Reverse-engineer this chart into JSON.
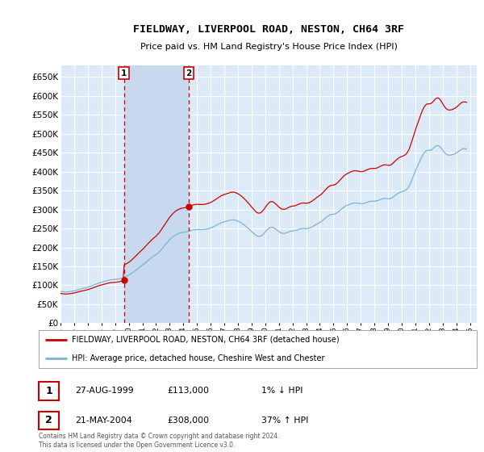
{
  "title": "FIELDWAY, LIVERPOOL ROAD, NESTON, CH64 3RF",
  "subtitle": "Price paid vs. HM Land Registry's House Price Index (HPI)",
  "ylim": [
    0,
    680000
  ],
  "yticks": [
    0,
    50000,
    100000,
    150000,
    200000,
    250000,
    300000,
    350000,
    400000,
    450000,
    500000,
    550000,
    600000,
    650000
  ],
  "xlim_start": 1995.0,
  "xlim_end": 2025.5,
  "bg_color": "#dce9f7",
  "plot_bg_color": "#dce9f7",
  "shade_color": "#c8d8ee",
  "grid_color": "#ffffff",
  "hpi_color": "#7ab4d8",
  "price_color": "#cc0000",
  "sale1_date": 1999.65,
  "sale1_price": 113000,
  "sale2_date": 2004.39,
  "sale2_price": 308000,
  "legend_label1": "FIELDWAY, LIVERPOOL ROAD, NESTON, CH64 3RF (detached house)",
  "legend_label2": "HPI: Average price, detached house, Cheshire West and Chester",
  "table_row1": [
    "1",
    "27-AUG-1999",
    "£113,000",
    "1% ↓ HPI"
  ],
  "table_row2": [
    "2",
    "21-MAY-2004",
    "£308,000",
    "37% ↑ HPI"
  ],
  "footer": "Contains HM Land Registry data © Crown copyright and database right 2024.\nThis data is licensed under the Open Government Licence v3.0.",
  "hpi_monthly": [
    [
      1995.0,
      84000
    ],
    [
      1995.083,
      83600
    ],
    [
      1995.167,
      83100
    ],
    [
      1995.25,
      82700
    ],
    [
      1995.333,
      82500
    ],
    [
      1995.417,
      82400
    ],
    [
      1995.5,
      82600
    ],
    [
      1995.583,
      82900
    ],
    [
      1995.667,
      83300
    ],
    [
      1995.75,
      83800
    ],
    [
      1995.833,
      84200
    ],
    [
      1995.917,
      84700
    ],
    [
      1996.0,
      85300
    ],
    [
      1996.083,
      86100
    ],
    [
      1996.167,
      87000
    ],
    [
      1996.25,
      87900
    ],
    [
      1996.333,
      88800
    ],
    [
      1996.417,
      89600
    ],
    [
      1996.5,
      90400
    ],
    [
      1996.583,
      91100
    ],
    [
      1996.667,
      91800
    ],
    [
      1996.75,
      92500
    ],
    [
      1996.833,
      93200
    ],
    [
      1996.917,
      93900
    ],
    [
      1997.0,
      94700
    ],
    [
      1997.083,
      95700
    ],
    [
      1997.167,
      96800
    ],
    [
      1997.25,
      98000
    ],
    [
      1997.333,
      99200
    ],
    [
      1997.417,
      100500
    ],
    [
      1997.5,
      101800
    ],
    [
      1997.583,
      103000
    ],
    [
      1997.667,
      104200
    ],
    [
      1997.75,
      105300
    ],
    [
      1997.833,
      106300
    ],
    [
      1997.917,
      107200
    ],
    [
      1998.0,
      108000
    ],
    [
      1998.083,
      108900
    ],
    [
      1998.167,
      109800
    ],
    [
      1998.25,
      110800
    ],
    [
      1998.333,
      111700
    ],
    [
      1998.417,
      112500
    ],
    [
      1998.5,
      113200
    ],
    [
      1998.583,
      113800
    ],
    [
      1998.667,
      114300
    ],
    [
      1998.75,
      114700
    ],
    [
      1998.833,
      115000
    ],
    [
      1998.917,
      115200
    ],
    [
      1999.0,
      115400
    ],
    [
      1999.083,
      115700
    ],
    [
      1999.167,
      116100
    ],
    [
      1999.25,
      116700
    ],
    [
      1999.333,
      117400
    ],
    [
      1999.417,
      118200
    ],
    [
      1999.5,
      119100
    ],
    [
      1999.583,
      120100
    ],
    [
      1999.667,
      121200
    ],
    [
      1999.75,
      122400
    ],
    [
      1999.833,
      123700
    ],
    [
      1999.917,
      125100
    ],
    [
      2000.0,
      126600
    ],
    [
      2000.083,
      128400
    ],
    [
      2000.167,
      130300
    ],
    [
      2000.25,
      132400
    ],
    [
      2000.333,
      134600
    ],
    [
      2000.417,
      136900
    ],
    [
      2000.5,
      139300
    ],
    [
      2000.583,
      141700
    ],
    [
      2000.667,
      144100
    ],
    [
      2000.75,
      146400
    ],
    [
      2000.833,
      148700
    ],
    [
      2000.917,
      150900
    ],
    [
      2001.0,
      153000
    ],
    [
      2001.083,
      155400
    ],
    [
      2001.167,
      157900
    ],
    [
      2001.25,
      160500
    ],
    [
      2001.333,
      163100
    ],
    [
      2001.417,
      165700
    ],
    [
      2001.5,
      168200
    ],
    [
      2001.583,
      170600
    ],
    [
      2001.667,
      172900
    ],
    [
      2001.75,
      175100
    ],
    [
      2001.833,
      177200
    ],
    [
      2001.917,
      179200
    ],
    [
      2002.0,
      181100
    ],
    [
      2002.083,
      183500
    ],
    [
      2002.167,
      186100
    ],
    [
      2002.25,
      189000
    ],
    [
      2002.333,
      192200
    ],
    [
      2002.417,
      195600
    ],
    [
      2002.5,
      199200
    ],
    [
      2002.583,
      202900
    ],
    [
      2002.667,
      206600
    ],
    [
      2002.75,
      210300
    ],
    [
      2002.833,
      213800
    ],
    [
      2002.917,
      217200
    ],
    [
      2003.0,
      220300
    ],
    [
      2003.083,
      223200
    ],
    [
      2003.167,
      225900
    ],
    [
      2003.25,
      228400
    ],
    [
      2003.333,
      230700
    ],
    [
      2003.417,
      232700
    ],
    [
      2003.5,
      234400
    ],
    [
      2003.583,
      235800
    ],
    [
      2003.667,
      237000
    ],
    [
      2003.75,
      238000
    ],
    [
      2003.833,
      238700
    ],
    [
      2003.917,
      239200
    ],
    [
      2004.0,
      239600
    ],
    [
      2004.083,
      240100
    ],
    [
      2004.167,
      240700
    ],
    [
      2004.25,
      241400
    ],
    [
      2004.333,
      242200
    ],
    [
      2004.417,
      243100
    ],
    [
      2004.5,
      244000
    ],
    [
      2004.583,
      244900
    ],
    [
      2004.667,
      245700
    ],
    [
      2004.75,
      246300
    ],
    [
      2004.833,
      246800
    ],
    [
      2004.917,
      247100
    ],
    [
      2005.0,
      247200
    ],
    [
      2005.083,
      247200
    ],
    [
      2005.167,
      247100
    ],
    [
      2005.25,
      247000
    ],
    [
      2005.333,
      246900
    ],
    [
      2005.417,
      247000
    ],
    [
      2005.5,
      247200
    ],
    [
      2005.583,
      247500
    ],
    [
      2005.667,
      248000
    ],
    [
      2005.75,
      248600
    ],
    [
      2005.833,
      249300
    ],
    [
      2005.917,
      250100
    ],
    [
      2006.0,
      251100
    ],
    [
      2006.083,
      252300
    ],
    [
      2006.167,
      253700
    ],
    [
      2006.25,
      255200
    ],
    [
      2006.333,
      256800
    ],
    [
      2006.417,
      258500
    ],
    [
      2006.5,
      260200
    ],
    [
      2006.583,
      261800
    ],
    [
      2006.667,
      263300
    ],
    [
      2006.75,
      264700
    ],
    [
      2006.833,
      265900
    ],
    [
      2006.917,
      266900
    ],
    [
      2007.0,
      267700
    ],
    [
      2007.083,
      268500
    ],
    [
      2007.167,
      269300
    ],
    [
      2007.25,
      270200
    ],
    [
      2007.333,
      271100
    ],
    [
      2007.417,
      271900
    ],
    [
      2007.5,
      272400
    ],
    [
      2007.583,
      272700
    ],
    [
      2007.667,
      272700
    ],
    [
      2007.75,
      272300
    ],
    [
      2007.833,
      271600
    ],
    [
      2007.917,
      270600
    ],
    [
      2008.0,
      269400
    ],
    [
      2008.083,
      268000
    ],
    [
      2008.167,
      266400
    ],
    [
      2008.25,
      264600
    ],
    [
      2008.333,
      262500
    ],
    [
      2008.417,
      260300
    ],
    [
      2008.5,
      258000
    ],
    [
      2008.583,
      255600
    ],
    [
      2008.667,
      253100
    ],
    [
      2008.75,
      250500
    ],
    [
      2008.833,
      247800
    ],
    [
      2008.917,
      245000
    ],
    [
      2009.0,
      242100
    ],
    [
      2009.083,
      239200
    ],
    [
      2009.167,
      236400
    ],
    [
      2009.25,
      233800
    ],
    [
      2009.333,
      231600
    ],
    [
      2009.417,
      229900
    ],
    [
      2009.5,
      229000
    ],
    [
      2009.583,
      229000
    ],
    [
      2009.667,
      229900
    ],
    [
      2009.75,
      231700
    ],
    [
      2009.833,
      234200
    ],
    [
      2009.917,
      237300
    ],
    [
      2010.0,
      240700
    ],
    [
      2010.083,
      244100
    ],
    [
      2010.167,
      247200
    ],
    [
      2010.25,
      249800
    ],
    [
      2010.333,
      251800
    ],
    [
      2010.417,
      252900
    ],
    [
      2010.5,
      253000
    ],
    [
      2010.583,
      252200
    ],
    [
      2010.667,
      250700
    ],
    [
      2010.75,
      248700
    ],
    [
      2010.833,
      246400
    ],
    [
      2010.917,
      244100
    ],
    [
      2011.0,
      241800
    ],
    [
      2011.083,
      239900
    ],
    [
      2011.167,
      238400
    ],
    [
      2011.25,
      237400
    ],
    [
      2011.333,
      236900
    ],
    [
      2011.417,
      237000
    ],
    [
      2011.5,
      237700
    ],
    [
      2011.583,
      238800
    ],
    [
      2011.667,
      240100
    ],
    [
      2011.75,
      241400
    ],
    [
      2011.833,
      242500
    ],
    [
      2011.917,
      243200
    ],
    [
      2012.0,
      243500
    ],
    [
      2012.083,
      243700
    ],
    [
      2012.167,
      244200
    ],
    [
      2012.25,
      245000
    ],
    [
      2012.333,
      246000
    ],
    [
      2012.417,
      247100
    ],
    [
      2012.5,
      248200
    ],
    [
      2012.583,
      249100
    ],
    [
      2012.667,
      249700
    ],
    [
      2012.75,
      250000
    ],
    [
      2012.833,
      250000
    ],
    [
      2012.917,
      249800
    ],
    [
      2013.0,
      249600
    ],
    [
      2013.083,
      249700
    ],
    [
      2013.167,
      250200
    ],
    [
      2013.25,
      251100
    ],
    [
      2013.333,
      252300
    ],
    [
      2013.417,
      253800
    ],
    [
      2013.5,
      255500
    ],
    [
      2013.583,
      257300
    ],
    [
      2013.667,
      259200
    ],
    [
      2013.75,
      261000
    ],
    [
      2013.833,
      262700
    ],
    [
      2013.917,
      264300
    ],
    [
      2014.0,
      265800
    ],
    [
      2014.083,
      267600
    ],
    [
      2014.167,
      269800
    ],
    [
      2014.25,
      272300
    ],
    [
      2014.333,
      275000
    ],
    [
      2014.417,
      277700
    ],
    [
      2014.5,
      280200
    ],
    [
      2014.583,
      282400
    ],
    [
      2014.667,
      284300
    ],
    [
      2014.75,
      285700
    ],
    [
      2014.833,
      286700
    ],
    [
      2014.917,
      287200
    ],
    [
      2015.0,
      287400
    ],
    [
      2015.083,
      288000
    ],
    [
      2015.167,
      289200
    ],
    [
      2015.25,
      291000
    ],
    [
      2015.333,
      293200
    ],
    [
      2015.417,
      295800
    ],
    [
      2015.5,
      298500
    ],
    [
      2015.583,
      301200
    ],
    [
      2015.667,
      303700
    ],
    [
      2015.75,
      306000
    ],
    [
      2015.833,
      308000
    ],
    [
      2015.917,
      309600
    ],
    [
      2016.0,
      310900
    ],
    [
      2016.083,
      312100
    ],
    [
      2016.167,
      313300
    ],
    [
      2016.25,
      314500
    ],
    [
      2016.333,
      315600
    ],
    [
      2016.417,
      316500
    ],
    [
      2016.5,
      317000
    ],
    [
      2016.583,
      317200
    ],
    [
      2016.667,
      317100
    ],
    [
      2016.75,
      316700
    ],
    [
      2016.833,
      316200
    ],
    [
      2016.917,
      315700
    ],
    [
      2017.0,
      315300
    ],
    [
      2017.083,
      315300
    ],
    [
      2017.167,
      315700
    ],
    [
      2017.25,
      316500
    ],
    [
      2017.333,
      317500
    ],
    [
      2017.417,
      318600
    ],
    [
      2017.5,
      319700
    ],
    [
      2017.583,
      320600
    ],
    [
      2017.667,
      321300
    ],
    [
      2017.75,
      321800
    ],
    [
      2017.833,
      322000
    ],
    [
      2017.917,
      322100
    ],
    [
      2018.0,
      322000
    ],
    [
      2018.083,
      322200
    ],
    [
      2018.167,
      322800
    ],
    [
      2018.25,
      323700
    ],
    [
      2018.333,
      324900
    ],
    [
      2018.417,
      326200
    ],
    [
      2018.5,
      327400
    ],
    [
      2018.583,
      328400
    ],
    [
      2018.667,
      329100
    ],
    [
      2018.75,
      329400
    ],
    [
      2018.833,
      329400
    ],
    [
      2018.917,
      329100
    ],
    [
      2019.0,
      328500
    ],
    [
      2019.083,
      328400
    ],
    [
      2019.167,
      329000
    ],
    [
      2019.25,
      330300
    ],
    [
      2019.333,
      332100
    ],
    [
      2019.417,
      334300
    ],
    [
      2019.5,
      336700
    ],
    [
      2019.583,
      339000
    ],
    [
      2019.667,
      341100
    ],
    [
      2019.75,
      343000
    ],
    [
      2019.833,
      344600
    ],
    [
      2019.917,
      345800
    ],
    [
      2020.0,
      346700
    ],
    [
      2020.083,
      347600
    ],
    [
      2020.167,
      348700
    ],
    [
      2020.25,
      350200
    ],
    [
      2020.333,
      352300
    ],
    [
      2020.417,
      355300
    ],
    [
      2020.5,
      359500
    ],
    [
      2020.583,
      365000
    ],
    [
      2020.667,
      371700
    ],
    [
      2020.75,
      379200
    ],
    [
      2020.833,
      387000
    ],
    [
      2020.917,
      394700
    ],
    [
      2021.0,
      401900
    ],
    [
      2021.083,
      408700
    ],
    [
      2021.167,
      415400
    ],
    [
      2021.25,
      422000
    ],
    [
      2021.333,
      428600
    ],
    [
      2021.417,
      435000
    ],
    [
      2021.5,
      441000
    ],
    [
      2021.583,
      446300
    ],
    [
      2021.667,
      450600
    ],
    [
      2021.75,
      453700
    ],
    [
      2021.833,
      455600
    ],
    [
      2021.917,
      456400
    ],
    [
      2022.0,
      456300
    ],
    [
      2022.083,
      456500
    ],
    [
      2022.167,
      457500
    ],
    [
      2022.25,
      459500
    ],
    [
      2022.333,
      462100
    ],
    [
      2022.417,
      464900
    ],
    [
      2022.5,
      467200
    ],
    [
      2022.583,
      468600
    ],
    [
      2022.667,
      468700
    ],
    [
      2022.75,
      467200
    ],
    [
      2022.833,
      464500
    ],
    [
      2022.917,
      460900
    ],
    [
      2023.0,
      456900
    ],
    [
      2023.083,
      452900
    ],
    [
      2023.167,
      449400
    ],
    [
      2023.25,
      446700
    ],
    [
      2023.333,
      444800
    ],
    [
      2023.417,
      443800
    ],
    [
      2023.5,
      443500
    ],
    [
      2023.583,
      443700
    ],
    [
      2023.667,
      444200
    ],
    [
      2023.75,
      445100
    ],
    [
      2023.833,
      446200
    ],
    [
      2023.917,
      447500
    ],
    [
      2024.0,
      449000
    ],
    [
      2024.083,
      451100
    ],
    [
      2024.167,
      453400
    ],
    [
      2024.25,
      455700
    ],
    [
      2024.333,
      457700
    ],
    [
      2024.417,
      459300
    ],
    [
      2024.5,
      460200
    ],
    [
      2024.583,
      460500
    ],
    [
      2024.667,
      460300
    ],
    [
      2024.75,
      459600
    ]
  ]
}
